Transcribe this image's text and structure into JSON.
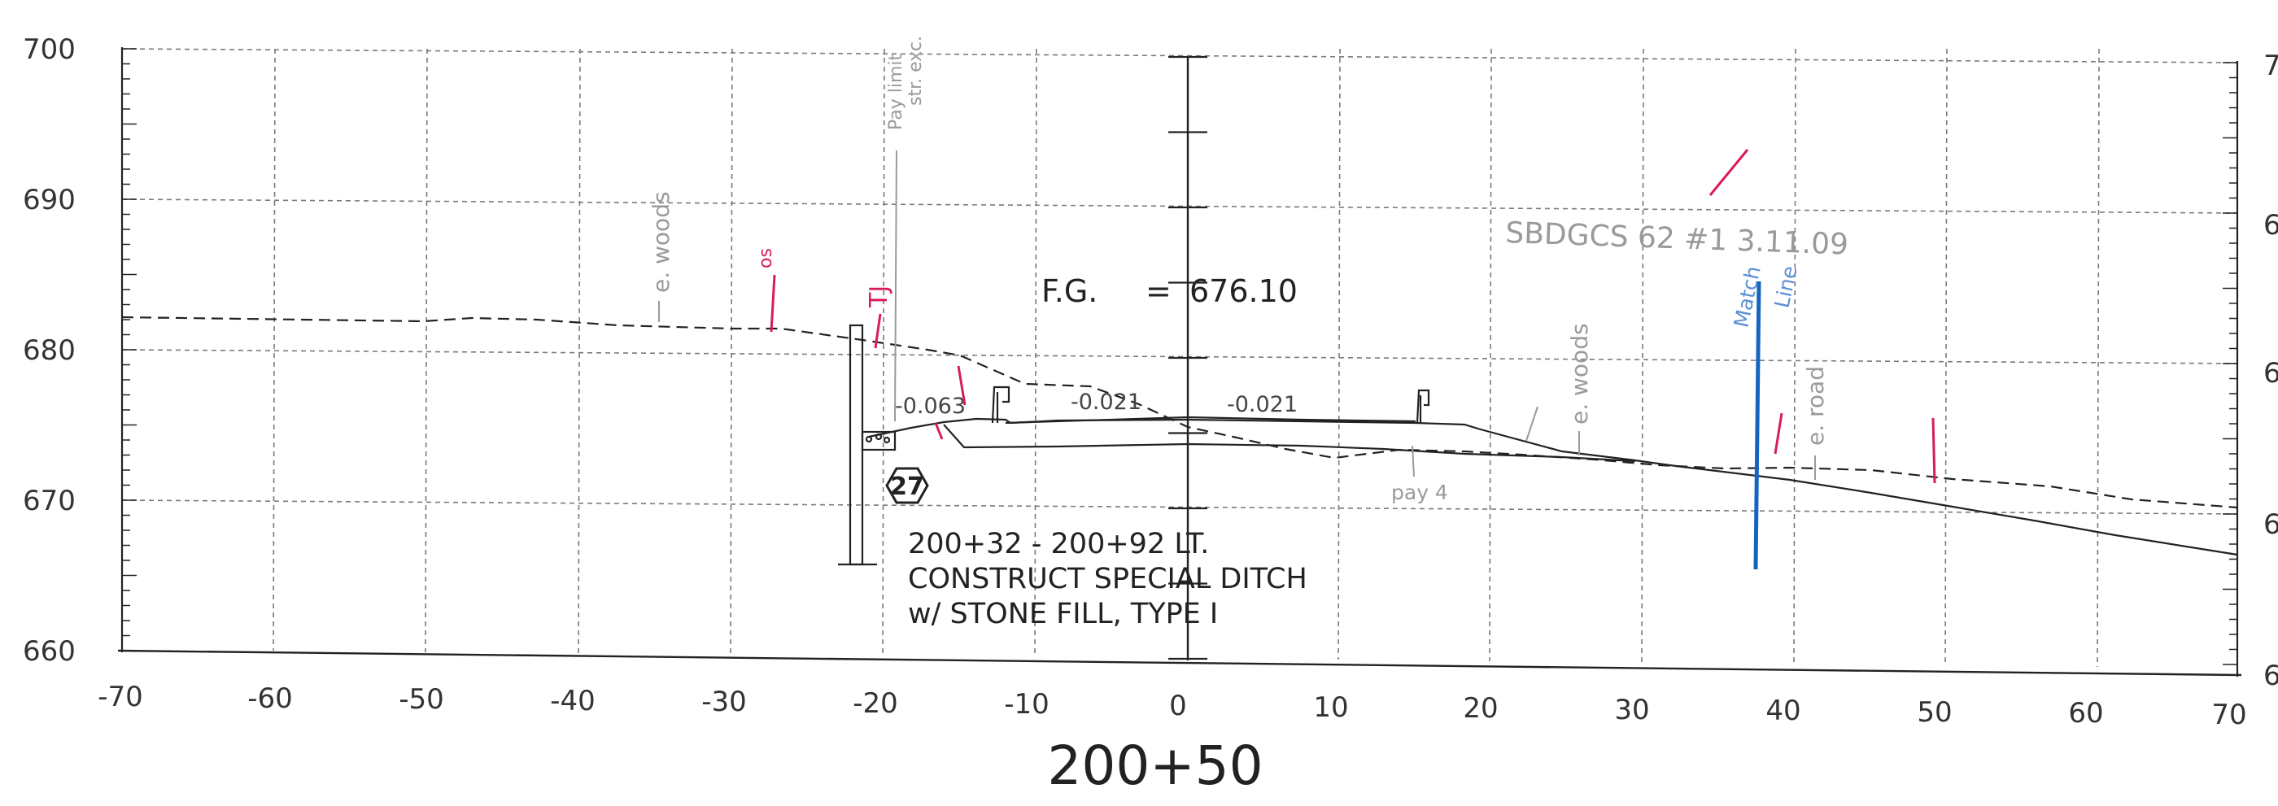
{
  "station": "200+50",
  "y_axis": {
    "labels": [
      "700",
      "690",
      "680",
      "670",
      "660"
    ],
    "values": [
      700,
      690,
      680,
      670,
      660
    ]
  },
  "x_axis": {
    "labels": [
      "-70",
      "-60",
      "-50",
      "-40",
      "-30",
      "-20",
      "-10",
      "0",
      "10",
      "20",
      "30",
      "40",
      "50",
      "60",
      "70"
    ],
    "values": [
      -70,
      -60,
      -50,
      -40,
      -30,
      -20,
      -10,
      0,
      10,
      20,
      30,
      40,
      50,
      60,
      70
    ]
  },
  "right_axis_fragments": [
    "7",
    "6",
    "6",
    "6",
    "6"
  ],
  "finish_grade": {
    "label": "F.G.",
    "equals": "=",
    "value": "676.10"
  },
  "slopes": [
    "-0.063",
    "-0.021",
    "-0.021"
  ],
  "marker": {
    "number": "27"
  },
  "note_lines": [
    "200+32 - 200+92 LT.",
    "CONSTRUCT SPECIAL DITCH",
    "w/ STONE FILL, TYPE I"
  ],
  "handwritten": {
    "woods_left": "e. woods",
    "woods_right": "e. woods",
    "road": "e. road",
    "pay_limit": [
      "Pay limit",
      "str. exc."
    ],
    "pay4": "pay 4",
    "survey": "SBDGCS 62 #1 3.11.09",
    "match": [
      "Match",
      "Line"
    ],
    "tj": "TJ",
    "os": "os"
  },
  "colors": {
    "grid": "#7a7a7a",
    "ink": "#222222",
    "pencil": "#9a9a9a",
    "red_pencil": "#d81b60",
    "match_line": "#1565c0",
    "match_text": "#5b8fd6"
  }
}
